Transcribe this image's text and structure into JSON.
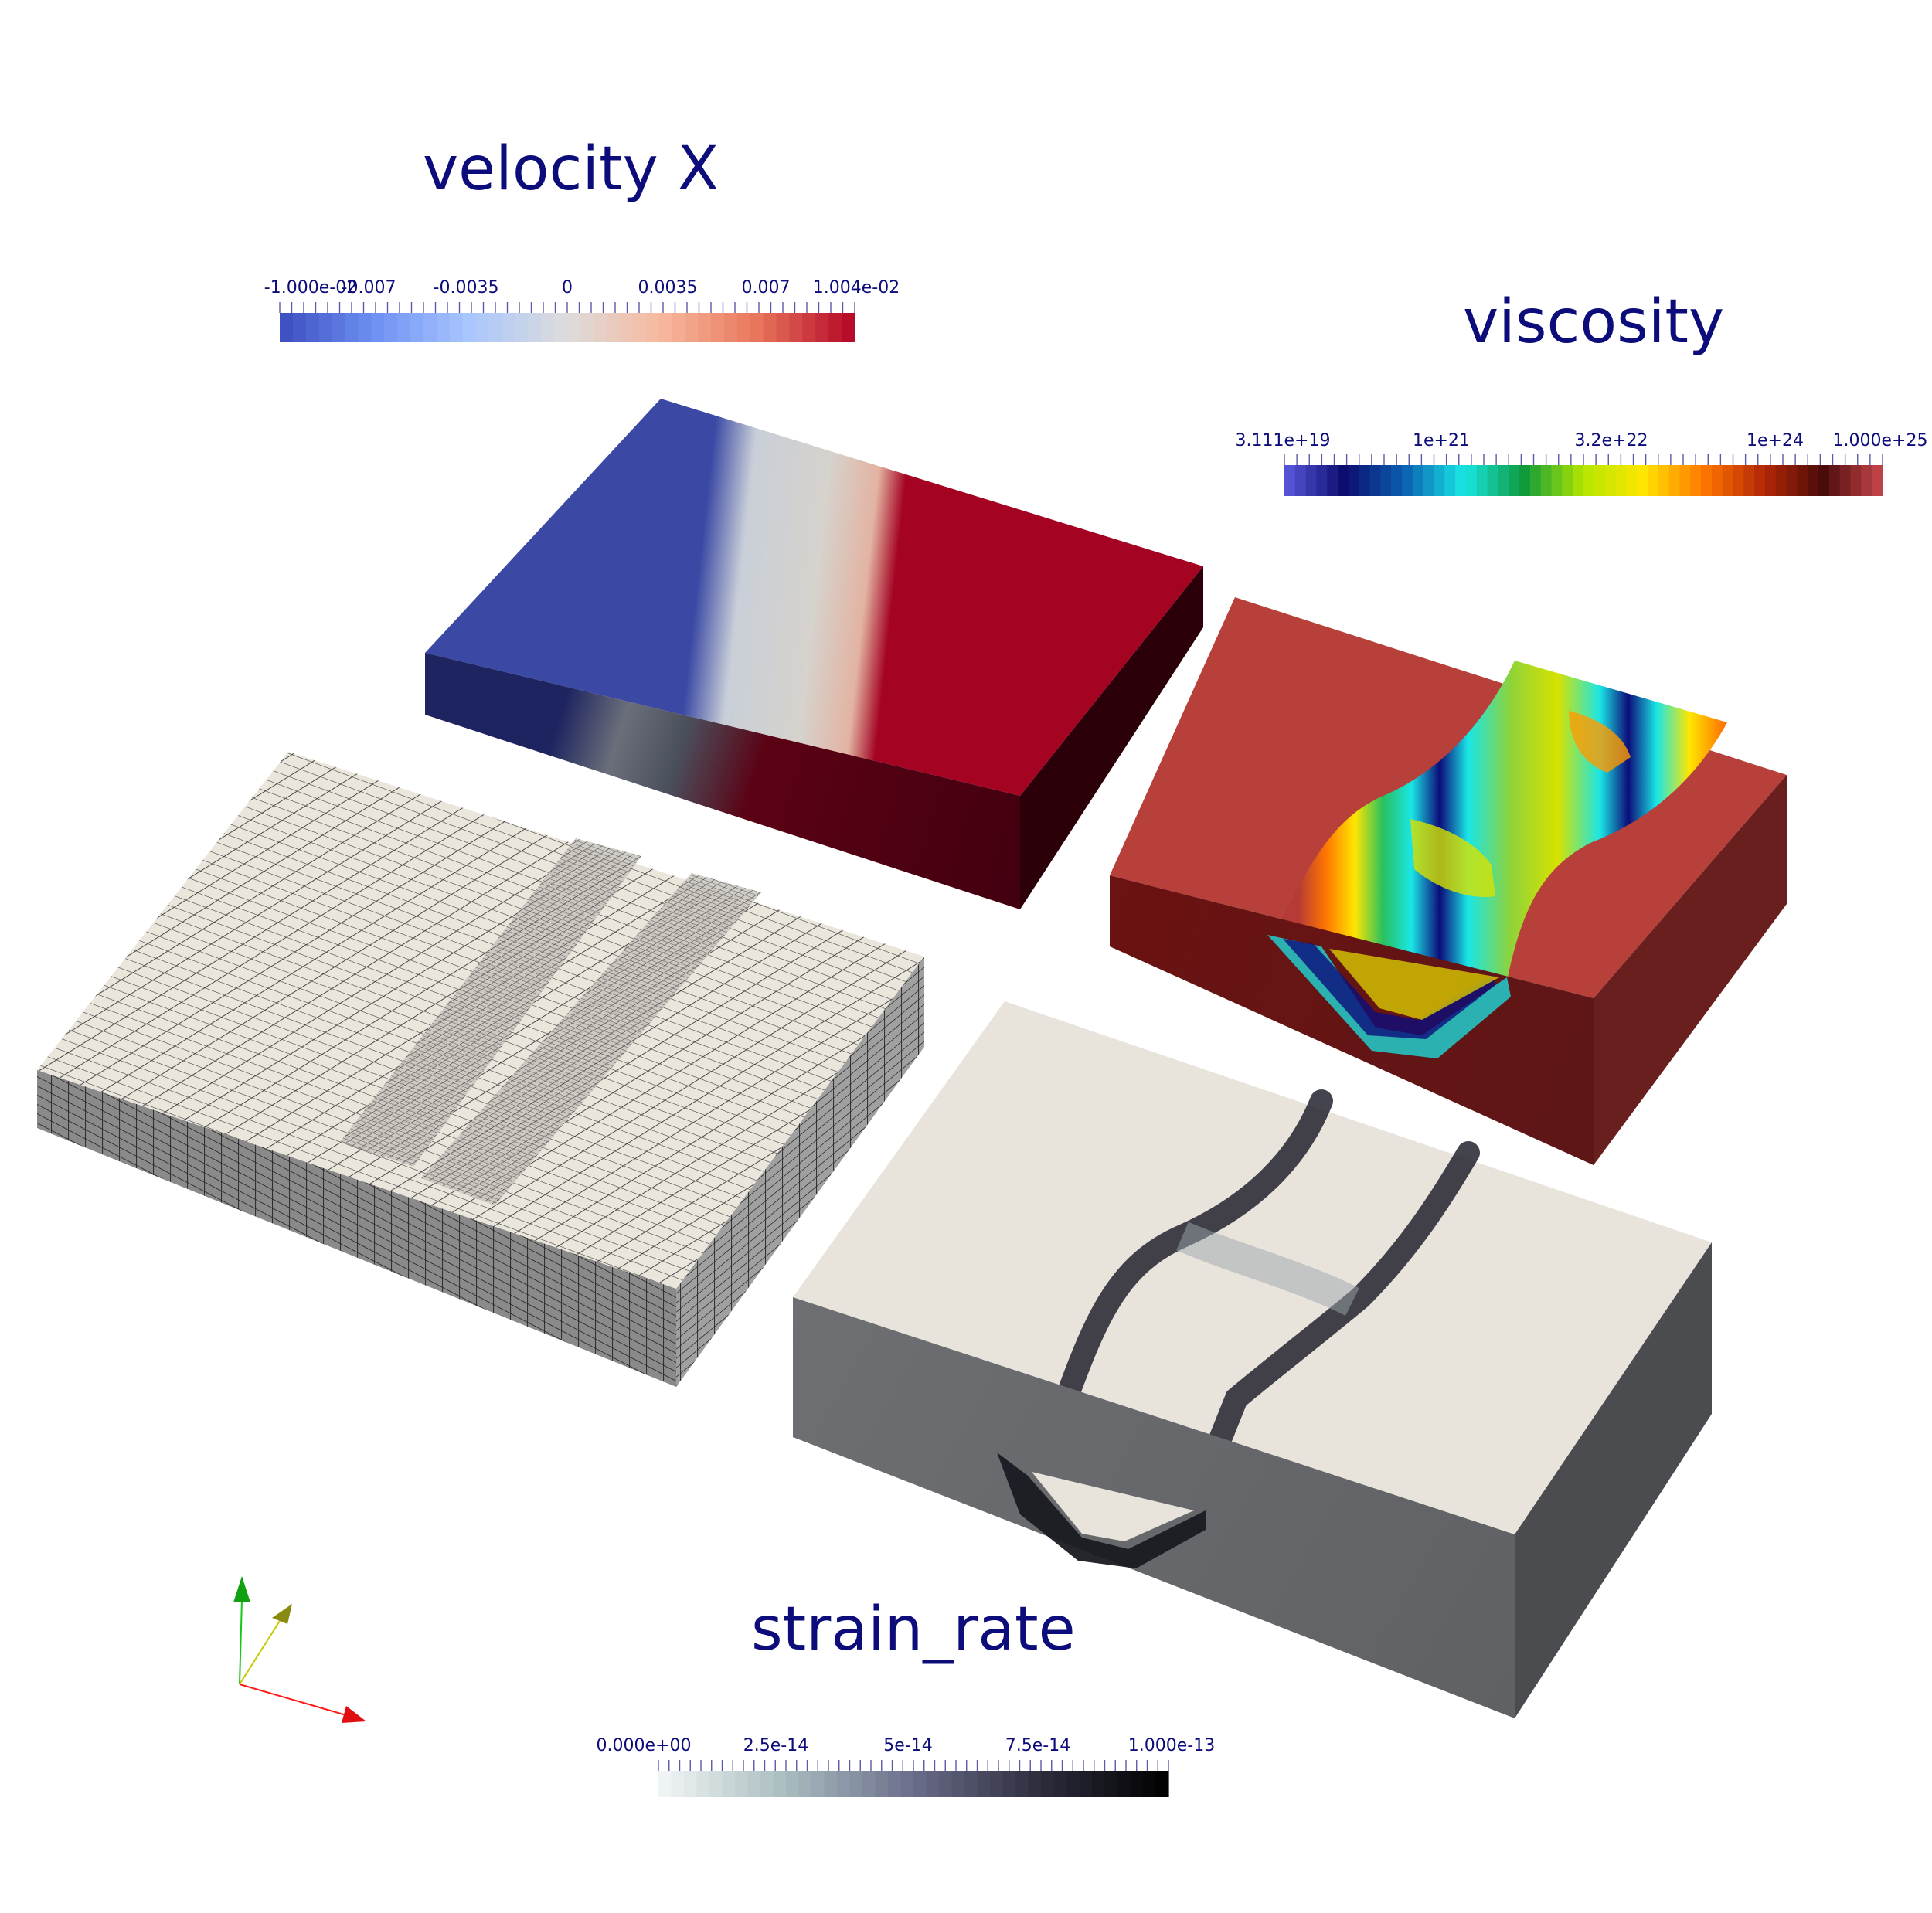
{
  "window": {
    "title": "",
    "kind": "3D field renders of four rectangular blocks"
  },
  "panels": {
    "velocity": {
      "title": "velocity X",
      "tick_labels": [
        "-1.000e-02",
        "-0.007",
        "-0.0035",
        "0",
        "0.0035",
        "0.007",
        "1.004e-02"
      ],
      "range": [
        -0.01,
        0.01004
      ],
      "colormap_stops": [
        "#3b4cc0",
        "#6f92f3",
        "#aac7fd",
        "#dddcdc",
        "#f7b89c",
        "#e7745b",
        "#b40426"
      ]
    },
    "viscosity": {
      "title": "viscosity",
      "tick_labels": [
        "3.111e+19",
        "1e+21",
        "3.2e+22",
        "1e+24",
        "1.000e+25"
      ],
      "range": [
        3.111e+19,
        1e+25
      ],
      "scale": "log",
      "colormap_stops": [
        "#5a5add",
        "#0c0c6e",
        "#0a5fb0",
        "#1ae6e6",
        "#0d9a3c",
        "#b4e600",
        "#ffe600",
        "#ff7800",
        "#b42806",
        "#4a0a0a",
        "#c8474b"
      ]
    },
    "strain_rate": {
      "title": "strain_rate",
      "tick_labels": [
        "0.000e+00",
        "2.5e-14",
        "5e-14",
        "7.5e-14",
        "1.000e-13"
      ],
      "range": [
        0,
        1e-13
      ],
      "colormap_stops": [
        "#f2f6f6",
        "#a8bcbf",
        "#6a6d8a",
        "#2c2c3c",
        "#000000"
      ]
    }
  },
  "orientation_axes": {
    "x_color": "#ff1a1a",
    "y_color": "#14c814",
    "z_color": "#b4b400"
  },
  "colors": {
    "text": "#0c0c7a",
    "background": "#ffffff",
    "mesh_fill": "#ebe6dc",
    "mesh_line": "#3c3c3c"
  }
}
